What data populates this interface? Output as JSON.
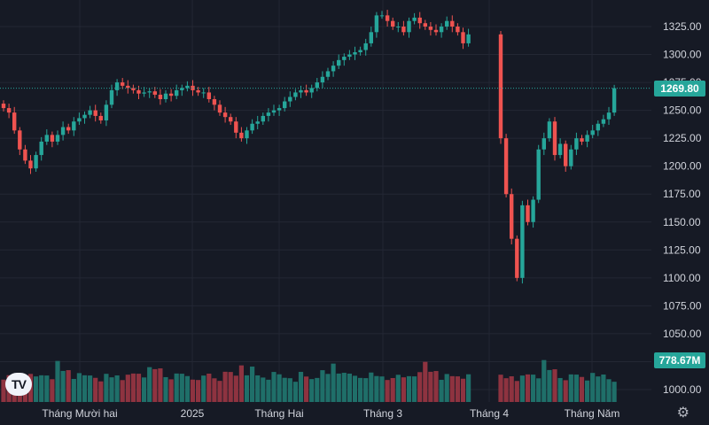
{
  "chart_data": {
    "type": "candlestick",
    "ylim": [
      990,
      1340
    ],
    "y_ticks": [
      1000,
      1025,
      1050,
      1075,
      1100,
      1125,
      1150,
      1175,
      1200,
      1225,
      1250,
      1275,
      1300,
      1325
    ],
    "x_labels": [
      "Tháng Mười hai",
      "2025",
      "Tháng Hai",
      "Tháng 3",
      "Tháng 4",
      "Tháng Năm"
    ],
    "last_price": 1269.8,
    "last_price_label": "1269.80",
    "volume_label": "778.67M",
    "colors": {
      "up": "#26a69a",
      "down": "#ef5350",
      "vol_up": "#1f6f69",
      "vol_down": "#8e3340"
    },
    "segments": [
      {
        "n": 10,
        "closes": [
          1252,
          1248,
          1232,
          1215,
          1205,
          1198,
          1210,
          1222,
          1228,
          1222
        ]
      },
      {
        "n": 12,
        "closes": [
          1228,
          1235,
          1232,
          1240,
          1243,
          1246,
          1250,
          1245,
          1241,
          1255,
          1268,
          1275
        ]
      },
      {
        "n": 15,
        "closes": [
          1272,
          1270,
          1268,
          1265,
          1266,
          1267,
          1264,
          1260,
          1265,
          1263,
          1268,
          1270,
          1272,
          1268,
          1266
        ]
      },
      {
        "n": 13,
        "closes": [
          1266,
          1260,
          1255,
          1248,
          1244,
          1240,
          1230,
          1225,
          1232,
          1238,
          1240,
          1245,
          1248
        ]
      },
      {
        "n": 20,
        "closes": [
          1250,
          1252,
          1258,
          1262,
          1266,
          1268,
          1266,
          1270,
          1275,
          1280,
          1285,
          1290,
          1295,
          1298,
          1300,
          1302,
          1304,
          1310,
          1320,
          1335
        ]
      },
      {
        "n": 17,
        "closes": [
          1335,
          1330,
          1325,
          1325,
          1320,
          1330,
          1333,
          1328,
          1325,
          1322,
          1320,
          1325,
          1330,
          1325,
          1320,
          1310,
          1318
        ]
      },
      {
        "n": 22,
        "closes": [
          1225,
          1175,
          1135,
          1100,
          1165,
          1150,
          1170,
          1215,
          1225,
          1240,
          1210,
          1220,
          1200,
          1215,
          1225,
          1222,
          1228,
          1232,
          1238,
          1242,
          1248,
          1269.8
        ]
      }
    ],
    "volumes": [
      0.33,
      0.24,
      0.31,
      0.22,
      0.41,
      0.26,
      0.22,
      0.37,
      0.45,
      0.35,
      0.97,
      0.55,
      0.68,
      0.32,
      0.3,
      0.28,
      0.36
    ]
  }
}
